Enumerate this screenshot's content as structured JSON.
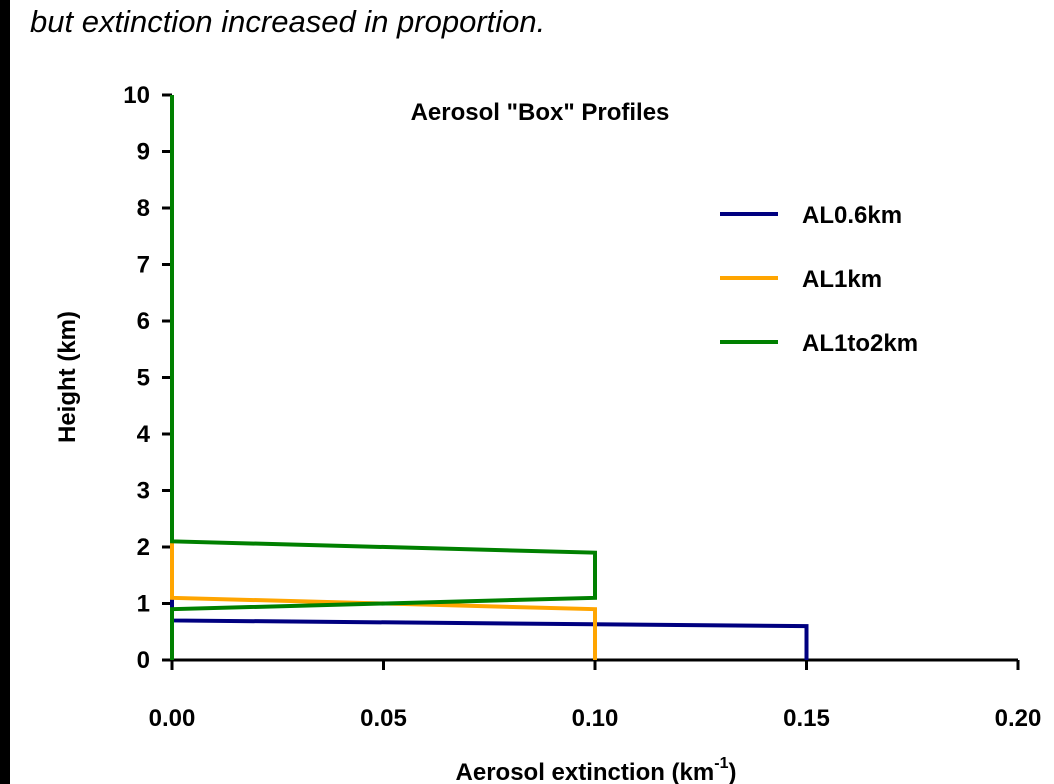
{
  "caption": "but extinction increased in proportion.",
  "chart_data": {
    "type": "line",
    "title": "Aerosol \"Box\" Profiles",
    "xlabel": "Aerosol extinction (km",
    "xlabel_sup": "-1",
    "xlabel_end": ")",
    "ylabel": "Height (km)",
    "xlim": [
      0,
      0.2
    ],
    "ylim": [
      0,
      10
    ],
    "xticks": [
      "0.00",
      "0.05",
      "0.10",
      "0.15",
      "0.20"
    ],
    "xtick_values": [
      0,
      0.05,
      0.1,
      0.15,
      0.2
    ],
    "yticks": [
      "0",
      "1",
      "2",
      "3",
      "4",
      "5",
      "6",
      "7",
      "8",
      "9",
      "10"
    ],
    "ytick_values": [
      0,
      1,
      2,
      3,
      4,
      5,
      6,
      7,
      8,
      9,
      10
    ],
    "legend_position": "right",
    "series": [
      {
        "name": "AL0.6km",
        "color": "#000080",
        "points": [
          [
            0.15,
            0
          ],
          [
            0.15,
            0.6
          ],
          [
            0,
            0.7
          ],
          [
            0,
            10
          ]
        ]
      },
      {
        "name": "AL1km",
        "color": "#FFA500",
        "points": [
          [
            0.1,
            0
          ],
          [
            0.1,
            0.9
          ],
          [
            0,
            1.1
          ],
          [
            0,
            10
          ]
        ]
      },
      {
        "name": "AL1to2km",
        "color": "#008000",
        "points": [
          [
            0,
            0
          ],
          [
            0,
            0.9
          ],
          [
            0.1,
            1.1
          ],
          [
            0.1,
            1.9
          ],
          [
            0,
            2.1
          ],
          [
            0,
            10
          ]
        ]
      }
    ]
  }
}
